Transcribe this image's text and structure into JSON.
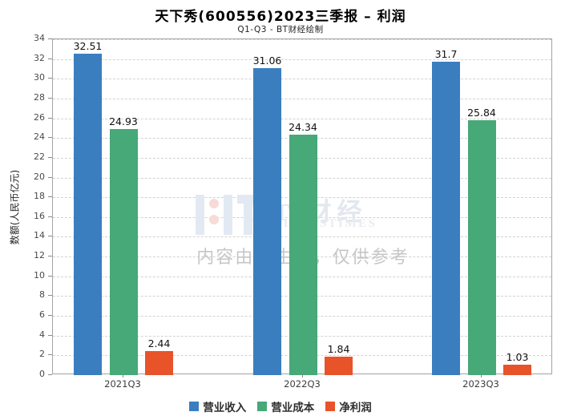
{
  "title": "天下秀(600556)2023三季报 – 利润",
  "subtitle": "Q1-Q3 - BT财经绘制",
  "watermark": {
    "brand": "BT 财经",
    "brand_sub": "BUSINESSTIMES",
    "disclaimer": "内容由AI生成，仅供参考",
    "logo_bar_color": "#e2e9f2",
    "logo_dot_color": "#f7dbd7"
  },
  "chart_data": {
    "type": "bar",
    "categories": [
      "2021Q3",
      "2022Q3",
      "2023Q3"
    ],
    "series": [
      {
        "name": "营业收入",
        "color": "#3a7ebf",
        "values": [
          32.51,
          31.06,
          31.7
        ]
      },
      {
        "name": "营业成本",
        "color": "#47a878",
        "values": [
          24.93,
          24.34,
          25.84
        ]
      },
      {
        "name": "净利润",
        "color": "#e8532a",
        "values": [
          2.44,
          1.84,
          1.03
        ]
      }
    ],
    "title": "天下秀(600556)2023三季报 – 利润",
    "subtitle": "Q1-Q3 - BT财经绘制",
    "xlabel": "",
    "ylabel": "数额(人民币亿元)",
    "ylim": [
      0,
      34
    ],
    "ytick_step": 2,
    "grid": true,
    "grid_style": "dashed",
    "legend_position": "bottom"
  }
}
